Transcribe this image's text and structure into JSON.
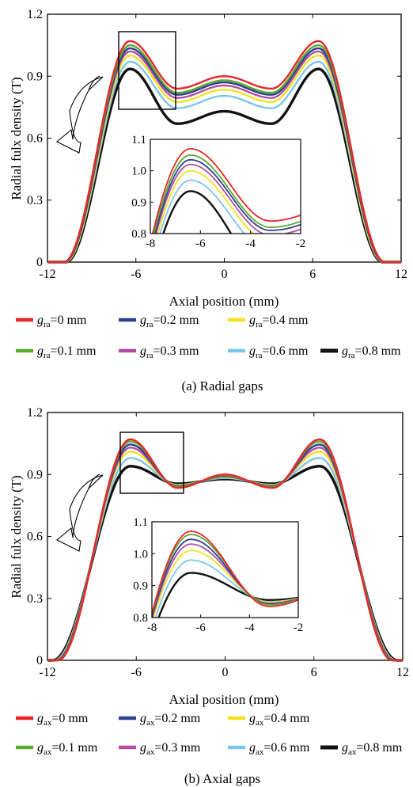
{
  "chart_data": [
    {
      "type": "line",
      "caption": "(a) Radial gaps",
      "xlabel": "Axial position (mm)",
      "ylabel": "Radial fulx density (T)",
      "xlim": [
        -12,
        12
      ],
      "ylim": [
        0,
        1.2
      ],
      "xticks": [
        "-12",
        "-6",
        "0",
        "6",
        "12"
      ],
      "yticks": [
        "0",
        "0.3",
        "0.6",
        "0.9",
        "1.2"
      ],
      "legend": {
        "var": "g",
        "sub": "ra",
        "entries": [
          "=0 mm",
          "=0.1 mm",
          "=0.2 mm",
          "=0.3 mm",
          "=0.4 mm",
          "=0.6 mm",
          "=0.8 mm"
        ]
      },
      "inset": {
        "xlim": [
          -8,
          -2
        ],
        "ylim": [
          0.8,
          1.1
        ],
        "xticks": [
          "-8",
          "-6",
          "-4",
          "-2"
        ],
        "yticks": [
          "0.8",
          "0.9",
          "1.0",
          "1.1"
        ]
      },
      "series": [
        {
          "color": "#e8262a",
          "peak": 1.07,
          "valley": 0.84,
          "mid": 0.9,
          "edge": 10.9
        },
        {
          "color": "#5aaa2e",
          "peak": 1.05,
          "valley": 0.82,
          "mid": 0.88,
          "edge": 10.9
        },
        {
          "color": "#2e3e94",
          "peak": 1.035,
          "valley": 0.81,
          "mid": 0.87,
          "edge": 10.85
        },
        {
          "color": "#b34fa3",
          "peak": 1.02,
          "valley": 0.795,
          "mid": 0.855,
          "edge": 10.85
        },
        {
          "color": "#f2e21f",
          "peak": 1.0,
          "valley": 0.775,
          "mid": 0.835,
          "edge": 10.8
        },
        {
          "color": "#7cc6ea",
          "peak": 0.97,
          "valley": 0.745,
          "mid": 0.805,
          "edge": 10.8
        },
        {
          "color": "#111111",
          "peak": 0.935,
          "valley": 0.67,
          "mid": 0.73,
          "edge": 10.75
        }
      ]
    },
    {
      "type": "line",
      "caption": "(b) Axial gaps",
      "xlabel": "Axial position (mm)",
      "ylabel": "Radial fulx density (T)",
      "xlim": [
        -12,
        12
      ],
      "ylim": [
        0,
        1.2
      ],
      "xticks": [
        "-12",
        "-6",
        "0",
        "6",
        "12"
      ],
      "yticks": [
        "0",
        "0.3",
        "0.6",
        "0.9",
        "1.2"
      ],
      "legend": {
        "var": "g",
        "sub": "ax",
        "entries": [
          "=0 mm",
          "=0.1 mm",
          "=0.2 mm",
          "=0.3 mm",
          "=0.4 mm",
          "=0.6 mm",
          "=0.8 mm"
        ]
      },
      "inset": {
        "xlim": [
          -8,
          -2
        ],
        "ylim": [
          0.8,
          1.1
        ],
        "xticks": [
          "-8",
          "-6",
          "-4",
          "-2"
        ],
        "yticks": [
          "0.8",
          "0.9",
          "1.0",
          "1.1"
        ]
      },
      "series": [
        {
          "color": "#e8262a",
          "peak": 1.07,
          "valley": 0.835,
          "mid": 0.9,
          "edge": 11.3
        },
        {
          "color": "#5aaa2e",
          "peak": 1.06,
          "valley": 0.84,
          "mid": 0.895,
          "edge": 11.35
        },
        {
          "color": "#2e3e94",
          "peak": 1.045,
          "valley": 0.842,
          "mid": 0.892,
          "edge": 11.4
        },
        {
          "color": "#b34fa3",
          "peak": 1.03,
          "valley": 0.845,
          "mid": 0.89,
          "edge": 11.45
        },
        {
          "color": "#f2e21f",
          "peak": 1.01,
          "valley": 0.848,
          "mid": 0.887,
          "edge": 11.5
        },
        {
          "color": "#7cc6ea",
          "peak": 0.98,
          "valley": 0.85,
          "mid": 0.883,
          "edge": 11.55
        },
        {
          "color": "#111111",
          "peak": 0.94,
          "valley": 0.855,
          "mid": 0.878,
          "edge": 11.65
        }
      ]
    }
  ]
}
